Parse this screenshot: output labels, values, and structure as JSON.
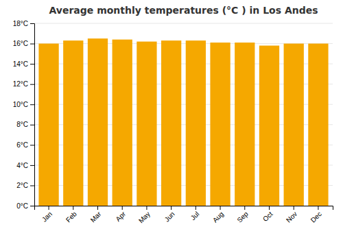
{
  "chart_data": {
    "type": "bar",
    "title": "Average monthly temperatures (°C ) in Los Andes",
    "categories": [
      "Jan",
      "Feb",
      "Mar",
      "Apr",
      "May",
      "Jun",
      "Jul",
      "Aug",
      "Sep",
      "Oct",
      "Nov",
      "Dec"
    ],
    "values": [
      16.0,
      16.3,
      16.5,
      16.4,
      16.2,
      16.3,
      16.3,
      16.1,
      16.1,
      15.8,
      16.0,
      16.0
    ],
    "color": "#F5A800",
    "ylim": [
      0,
      18
    ],
    "yticks": [
      {
        "value": 0,
        "label": "0°C"
      },
      {
        "value": 2,
        "label": "2°C"
      },
      {
        "value": 4,
        "label": "4°C"
      },
      {
        "value": 6,
        "label": "6°C"
      },
      {
        "value": 8,
        "label": "8°C"
      },
      {
        "value": 10,
        "label": "10°C"
      },
      {
        "value": 12,
        "label": "12°C"
      },
      {
        "value": 14,
        "label": "14°C"
      },
      {
        "value": 16,
        "label": "16°C"
      },
      {
        "value": 18,
        "label": "18°C"
      }
    ],
    "grid": true
  }
}
